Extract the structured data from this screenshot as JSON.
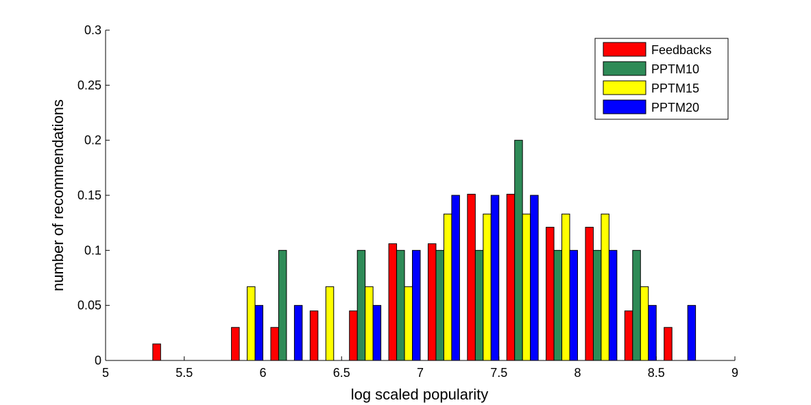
{
  "chart_data": {
    "type": "bar",
    "title": "",
    "xlabel": "log scaled popularity",
    "ylabel": "number of recommendations",
    "xlim": [
      5,
      9
    ],
    "ylim": [
      0,
      0.3
    ],
    "xticks": [
      5,
      5.5,
      6,
      6.5,
      7,
      7.5,
      8,
      8.5,
      9
    ],
    "yticks": [
      0,
      0.05,
      0.1,
      0.15,
      0.2,
      0.25,
      0.3
    ],
    "xtick_labels": [
      "5",
      "5.5",
      "6",
      "6.5",
      "7",
      "7.5",
      "8",
      "8.5",
      "9"
    ],
    "ytick_labels": [
      "0",
      "0.05",
      "0.1",
      "0.15",
      "0.2",
      "0.25",
      "0.3"
    ],
    "grid": false,
    "legend_position": "top-right",
    "categories": [
      5.15,
      5.4,
      5.65,
      5.9,
      6.15,
      6.4,
      6.65,
      6.9,
      7.15,
      7.4,
      7.65,
      7.9,
      8.15,
      8.4,
      8.65,
      8.9
    ],
    "series": [
      {
        "name": "Feedbacks",
        "color": "#ff0000",
        "values": [
          0,
          0.015,
          0,
          0.03,
          0.03,
          0.045,
          0.045,
          0.106,
          0.106,
          0.151,
          0.151,
          0.121,
          0.121,
          0.045,
          0.03,
          0
        ]
      },
      {
        "name": "PPTM10",
        "color": "#2e8b57",
        "values": [
          0,
          0,
          0,
          0,
          0.1,
          0,
          0.1,
          0.1,
          0.1,
          0.1,
          0.2,
          0.1,
          0.1,
          0.1,
          0,
          0
        ]
      },
      {
        "name": "PPTM15",
        "color": "#ffff00",
        "values": [
          0,
          0,
          0,
          0.067,
          0,
          0.067,
          0.067,
          0.067,
          0.133,
          0.133,
          0.133,
          0.133,
          0.133,
          0.067,
          0,
          0
        ]
      },
      {
        "name": "PPTM20",
        "color": "#0000ff",
        "values": [
          0,
          0,
          0,
          0.05,
          0.05,
          0,
          0.05,
          0.1,
          0.15,
          0.15,
          0.15,
          0.1,
          0.1,
          0.05,
          0.05,
          0
        ]
      }
    ]
  }
}
